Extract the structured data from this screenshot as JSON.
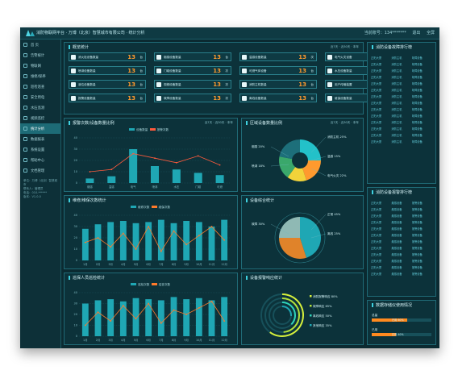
{
  "topbar": {
    "title": "消防物联网平台 · 万博（北京）智慧城市有限公司 · 统计分析",
    "phone": "当前账号：134*******",
    "logout": "退出",
    "fullscreen": "全屏"
  },
  "sidebar": {
    "items": [
      {
        "label": "首 页",
        "icon": "home-icon"
      },
      {
        "label": "告警统计",
        "icon": "alarm-icon"
      },
      {
        "label": "物联网",
        "icon": "iot-icon"
      },
      {
        "label": "维修/保养",
        "icon": "wrench-icon"
      },
      {
        "label": "巡检巡查",
        "icon": "patrol-icon"
      },
      {
        "label": "安全用电",
        "icon": "power-icon"
      },
      {
        "label": "水压监测",
        "icon": "water-icon"
      },
      {
        "label": "视频监控",
        "icon": "video-icon"
      },
      {
        "label": "统计分析",
        "icon": "chart-icon",
        "active": true
      },
      {
        "label": "数据报表",
        "icon": "report-icon"
      },
      {
        "label": "系统设置",
        "icon": "settings-icon"
      },
      {
        "label": "帮助中心",
        "icon": "help-icon"
      },
      {
        "label": "文档管理",
        "icon": "doc-icon"
      }
    ],
    "info": [
      "单位：万博（北京）智慧城市",
      "联系人：管理员",
      "电话：010-******",
      "版本：V1.0.0"
    ]
  },
  "overview": {
    "title": "概览统计",
    "controls": "近7天 · 近30天 · 本年",
    "cards": [
      {
        "label": "消火栓设备数量",
        "value": "13",
        "unit": "台"
      },
      {
        "label": "烟感设备数量",
        "value": "13",
        "unit": "台"
      },
      {
        "label": "温感设备数量",
        "value": "13",
        "unit": "次"
      },
      {
        "label": "电气火灾设备",
        "value": "13",
        "unit": "台"
      },
      {
        "label": "喷淋设备数量",
        "value": "13",
        "unit": "台"
      },
      {
        "label": "门磁设备数量",
        "value": "13",
        "unit": "次"
      },
      {
        "label": "可燃气体设备",
        "value": "13",
        "unit": "台"
      },
      {
        "label": "水压设备数量",
        "value": "13",
        "unit": "台"
      },
      {
        "label": "液位设备数量",
        "value": "13",
        "unit": "台"
      },
      {
        "label": "视频设备数量",
        "value": "13",
        "unit": "次"
      },
      {
        "label": "消防主机数量",
        "value": "13",
        "unit": "台"
      },
      {
        "label": "用户传输装置",
        "value": "13",
        "unit": "台"
      },
      {
        "label": "报警设备数量",
        "value": "13",
        "unit": "台"
      },
      {
        "label": "故障设备数量",
        "value": "13",
        "unit": "次"
      },
      {
        "label": "离线设备数量",
        "value": "13",
        "unit": "台"
      },
      {
        "label": "维保设备数量",
        "value": "13",
        "unit": "台"
      }
    ]
  },
  "alarm_chart": {
    "title": "报警次数/设备数量比例",
    "controls": "近7天 · 近30天 · 本年",
    "legend": [
      "设备数量",
      "报警次数"
    ],
    "chart_data": {
      "type": "bar",
      "categories": [
        "烟感",
        "温感",
        "电气",
        "喷淋",
        "水压",
        "门磁",
        "可燃"
      ],
      "series": [
        {
          "name": "设备数量",
          "values": [
            4,
            6,
            30,
            15,
            12,
            9,
            7
          ]
        },
        {
          "name": "报警次数",
          "values": [
            10,
            12,
            26,
            22,
            18,
            24,
            16
          ]
        }
      ],
      "ylim": [
        0,
        40
      ]
    }
  },
  "device_ratio": {
    "title": "区域设备数量比例",
    "controls": "近7天 · 近30天 · 本年",
    "labels": [
      "消防主机 25%",
      "烟感 20%",
      "温感 15%",
      "喷淋 18%",
      "电气火灾 22%"
    ],
    "chart_data": {
      "type": "pie",
      "categories": [
        "消防主机",
        "烟感",
        "温感",
        "喷淋",
        "电气火灾"
      ],
      "values": [
        25,
        20,
        15,
        18,
        22
      ]
    }
  },
  "maintain_chart": {
    "title": "维修/维保次数统计",
    "legend": [
      "维修次数",
      "维保次数"
    ],
    "chart_data": {
      "type": "bar",
      "categories": [
        "1月",
        "2月",
        "3月",
        "4月",
        "5月",
        "6月",
        "7月",
        "8月",
        "9月",
        "10月",
        "11月",
        "12月"
      ],
      "series": [
        {
          "name": "维修次数",
          "values": [
            28,
            32,
            34,
            35,
            33,
            34,
            36,
            33,
            35,
            34,
            30,
            36
          ]
        },
        {
          "name": "维保次数",
          "values": [
            16,
            20,
            12,
            24,
            10,
            30,
            8,
            26,
            14,
            22,
            30,
            18
          ]
        }
      ],
      "ylim": [
        0,
        40
      ]
    }
  },
  "device_status": {
    "title": "设备综合统计",
    "labels": [
      "正常 45%",
      "故障 30%",
      "离线 25%"
    ],
    "chart_data": {
      "type": "pie",
      "categories": [
        "正常",
        "故障",
        "离线"
      ],
      "values": [
        45,
        30,
        25
      ]
    }
  },
  "patrol_chart": {
    "title": "巡保人员巡检统计",
    "legend": [
      "巡检次数",
      "巡查次数"
    ],
    "chart_data": {
      "type": "bar",
      "categories": [
        "1月",
        "2月",
        "3月",
        "4月",
        "5月",
        "6月",
        "7月",
        "8月",
        "9月",
        "10月",
        "11月",
        "12月"
      ],
      "series": [
        {
          "name": "巡检次数",
          "values": [
            30,
            33,
            34,
            32,
            35,
            34,
            33,
            36,
            34,
            35,
            33,
            36
          ]
        },
        {
          "name": "巡查次数",
          "values": [
            10,
            22,
            14,
            28,
            16,
            30,
            12,
            24,
            20,
            26,
            32,
            14
          ]
        }
      ],
      "ylim": [
        0,
        40
      ]
    }
  },
  "alarm_response": {
    "title": "设备报警响应统计",
    "labels": [
      "消防报警响应 80%",
      "故障响应 65%",
      "离线响应 50%",
      "其他响应 35%"
    ],
    "chart_data": {
      "type": "pie",
      "categories": [
        "消防报警响应",
        "故障响应",
        "离线响应",
        "其他响应"
      ],
      "values": [
        80,
        65,
        50,
        35
      ]
    }
  },
  "rank1": {
    "title": "消防设备故障排行榜",
    "rows": [
      [
        "正阳大厦",
        "消防主机",
        "故障设备"
      ],
      [
        "正阳大厦",
        "消防主机",
        "故障设备"
      ],
      [
        "正阳大厦",
        "消防主机",
        "故障设备"
      ],
      [
        "正阳大厦",
        "消防主机",
        "故障设备"
      ],
      [
        "正阳大厦",
        "消防主机",
        "故障设备"
      ],
      [
        "正阳大厦",
        "消防主机",
        "故障设备"
      ],
      [
        "正阳大厦",
        "消防主机",
        "故障设备"
      ],
      [
        "正阳大厦",
        "消防主机",
        "故障设备"
      ],
      [
        "正阳大厦",
        "消防主机",
        "故障设备"
      ],
      [
        "正阳大厦",
        "消防主机",
        "故障设备"
      ],
      [
        "正阳大厦",
        "消防主机",
        "故障设备"
      ],
      [
        "正阳大厦",
        "消防主机",
        "故障设备"
      ],
      [
        "正阳大厦",
        "消防主机",
        "故障设备"
      ],
      [
        "正阳大厦",
        "消防主机",
        "故障设备"
      ]
    ]
  },
  "rank2": {
    "title": "消防设备报警排行榜",
    "rows": [
      [
        "正阳大厦",
        "烟感设备",
        "报警设备"
      ],
      [
        "正阳大厦",
        "烟感设备",
        "报警设备"
      ],
      [
        "正阳大厦",
        "烟感设备",
        "报警设备"
      ],
      [
        "正阳大厦",
        "烟感设备",
        "报警设备"
      ],
      [
        "正阳大厦",
        "烟感设备",
        "报警设备"
      ],
      [
        "正阳大厦",
        "烟感设备",
        "报警设备"
      ],
      [
        "正阳大厦",
        "烟感设备",
        "报警设备"
      ],
      [
        "正阳大厦",
        "烟感设备",
        "报警设备"
      ],
      [
        "正阳大厦",
        "烟感设备",
        "报警设备"
      ],
      [
        "正阳大厦",
        "烟感设备",
        "报警设备"
      ],
      [
        "正阳大厦",
        "烟感设备",
        "报警设备"
      ],
      [
        "正阳大厦",
        "烟感设备",
        "报警设备"
      ]
    ]
  },
  "usage": {
    "title": "数据存储仪使用情况",
    "items": [
      {
        "label": "总量",
        "value_text": "已用 60%",
        "fraction": 0.6
      },
      {
        "label": "已用",
        "value_text": "已用 40%",
        "fraction": 0.4
      }
    ]
  }
}
